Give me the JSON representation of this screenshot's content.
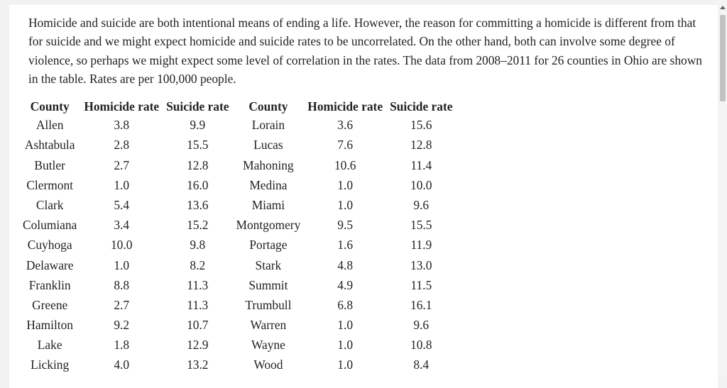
{
  "problem": {
    "text": "Homicide and suicide are both intentional means of ending a life. However, the reason for committing a homicide is different from that for suicide and we might expect homicide and suicide rates to be uncorrelated. On the other hand, both can involve some degree of violence, so perhaps we might expect some level of correlation in the rates. The data from 2008–2011 for 26 counties in Ohio are shown in the table. Rates are per 100,000 people."
  },
  "table": {
    "headers": [
      "County",
      "Homicide rate",
      "Suicide rate",
      "County",
      "Homicide rate",
      "Suicide rate"
    ],
    "rows": [
      [
        "Allen",
        "3.8",
        "9.9",
        "Lorain",
        "3.6",
        "15.6"
      ],
      [
        "Ashtabula",
        "2.8",
        "15.5",
        "Lucas",
        "7.6",
        "12.8"
      ],
      [
        "Butler",
        "2.7",
        "12.8",
        "Mahoning",
        "10.6",
        "11.4"
      ],
      [
        "Clermont",
        "1.0",
        "16.0",
        "Medina",
        "1.0",
        "10.0"
      ],
      [
        "Clark",
        "5.4",
        "13.6",
        "Miami",
        "1.0",
        "9.6"
      ],
      [
        "Columiana",
        "3.4",
        "15.2",
        "Montgomery",
        "9.5",
        "15.5"
      ],
      [
        "Cuyhoga",
        "10.0",
        "9.8",
        "Portage",
        "1.6",
        "11.9"
      ],
      [
        "Delaware",
        "1.0",
        "8.2",
        "Stark",
        "4.8",
        "13.0"
      ],
      [
        "Franklin",
        "8.8",
        "11.3",
        "Summit",
        "4.9",
        "11.5"
      ],
      [
        "Greene",
        "2.7",
        "11.3",
        "Trumbull",
        "6.8",
        "16.1"
      ],
      [
        "Hamilton",
        "9.2",
        "10.7",
        "Warren",
        "1.0",
        "9.6"
      ],
      [
        "Lake",
        "1.8",
        "12.9",
        "Wayne",
        "1.0",
        "10.8"
      ],
      [
        "Licking",
        "4.0",
        "13.2",
        "Wood",
        "1.0",
        "8.4"
      ]
    ]
  },
  "icons": {
    "scroll_up": "arrow-up-icon"
  }
}
